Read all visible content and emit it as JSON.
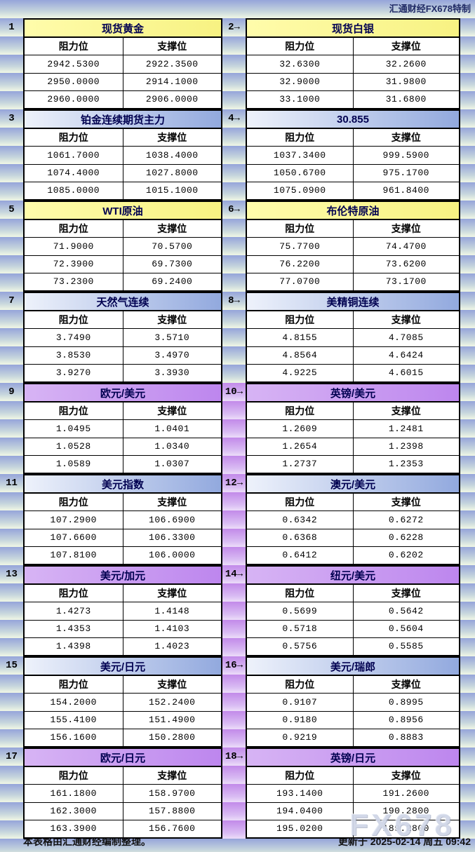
{
  "header": {
    "credit": "汇通财经FX678特制"
  },
  "labels": {
    "resistance": "阻力位",
    "support": "支撑位"
  },
  "footer": {
    "left": "本表格由汇通财经编制整理。",
    "right": "更新于 2025-02-14 周五 09:42"
  },
  "watermark": "FX678",
  "colors": {
    "stripe_blue_top": "#96a5da",
    "stripe_blue_bottom": "#ecf4e4",
    "stripe_purple_top": "#c28ae9",
    "stripe_purple_bottom": "#ead9f8",
    "title_yellow": "#f9f487",
    "title_blue": "#92a9de",
    "title_purple": "#bd86ee",
    "border": "#000000",
    "title_text": "#000050"
  },
  "tables": [
    {
      "label": "1",
      "title": "现货黄金",
      "theme": "yellow",
      "rows": [
        [
          "2942.5300",
          "2922.3500"
        ],
        [
          "2950.0000",
          "2914.1000"
        ],
        [
          "2960.0000",
          "2906.0000"
        ]
      ]
    },
    {
      "label": "2→",
      "title": "现货白银",
      "theme": "yellow",
      "rows": [
        [
          "32.6300",
          "32.2600"
        ],
        [
          "32.9000",
          "31.9800"
        ],
        [
          "33.1000",
          "31.6800"
        ]
      ]
    },
    {
      "label": "3",
      "title": "铂金连续期货主力",
      "theme": "blue",
      "rows": [
        [
          "1061.7000",
          "1038.4000"
        ],
        [
          "1074.4000",
          "1027.8000"
        ],
        [
          "1085.0000",
          "1015.1000"
        ]
      ]
    },
    {
      "label": "4→",
      "title": "30.855",
      "theme": "blue",
      "rows": [
        [
          "1037.3400",
          "999.5900"
        ],
        [
          "1050.6700",
          "975.1700"
        ],
        [
          "1075.0900",
          "961.8400"
        ]
      ]
    },
    {
      "label": "5",
      "title": "WTI原油",
      "theme": "yellow",
      "rows": [
        [
          "71.9000",
          "70.5700"
        ],
        [
          "72.3900",
          "69.7300"
        ],
        [
          "73.2300",
          "69.2400"
        ]
      ]
    },
    {
      "label": "6→",
      "title": "布伦特原油",
      "theme": "yellow",
      "rows": [
        [
          "75.7700",
          "74.4700"
        ],
        [
          "76.2200",
          "73.6200"
        ],
        [
          "77.0700",
          "73.1700"
        ]
      ]
    },
    {
      "label": "7",
      "title": "天然气连续",
      "theme": "blue",
      "rows": [
        [
          "3.7490",
          "3.5710"
        ],
        [
          "3.8530",
          "3.4970"
        ],
        [
          "3.9270",
          "3.3930"
        ]
      ]
    },
    {
      "label": "8→",
      "title": "美精铜连续",
      "theme": "blue",
      "rows": [
        [
          "4.8155",
          "4.7085"
        ],
        [
          "4.8564",
          "4.6424"
        ],
        [
          "4.9225",
          "4.6015"
        ]
      ]
    },
    {
      "label": "9",
      "title": "欧元/美元",
      "theme": "purple",
      "rows": [
        [
          "1.0495",
          "1.0401"
        ],
        [
          "1.0528",
          "1.0340"
        ],
        [
          "1.0589",
          "1.0307"
        ]
      ]
    },
    {
      "label": "10→",
      "title": "英镑/美元",
      "theme": "purple",
      "rows": [
        [
          "1.2609",
          "1.2481"
        ],
        [
          "1.2654",
          "1.2398"
        ],
        [
          "1.2737",
          "1.2353"
        ]
      ]
    },
    {
      "label": "11",
      "title": "美元指数",
      "theme": "blue",
      "rows": [
        [
          "107.2900",
          "106.6900"
        ],
        [
          "107.6600",
          "106.3300"
        ],
        [
          "107.8100",
          "106.0000"
        ]
      ]
    },
    {
      "label": "12→",
      "title": "澳元/美元",
      "theme": "blue",
      "rows": [
        [
          "0.6342",
          "0.6272"
        ],
        [
          "0.6368",
          "0.6228"
        ],
        [
          "0.6412",
          "0.6202"
        ]
      ]
    },
    {
      "label": "13",
      "title": "美元/加元",
      "theme": "purple",
      "rows": [
        [
          "1.4273",
          "1.4148"
        ],
        [
          "1.4353",
          "1.4103"
        ],
        [
          "1.4398",
          "1.4023"
        ]
      ]
    },
    {
      "label": "14→",
      "title": "纽元/美元",
      "theme": "purple",
      "rows": [
        [
          "0.5699",
          "0.5642"
        ],
        [
          "0.5718",
          "0.5604"
        ],
        [
          "0.5756",
          "0.5585"
        ]
      ]
    },
    {
      "label": "15",
      "title": "美元/日元",
      "theme": "blue",
      "rows": [
        [
          "154.2000",
          "152.2400"
        ],
        [
          "155.4100",
          "151.4900"
        ],
        [
          "156.1600",
          "150.2800"
        ]
      ]
    },
    {
      "label": "16→",
      "title": "美元/瑞郎",
      "theme": "blue",
      "rows": [
        [
          "0.9107",
          "0.8995"
        ],
        [
          "0.9180",
          "0.8956"
        ],
        [
          "0.9219",
          "0.8883"
        ]
      ]
    },
    {
      "label": "17",
      "title": "欧元/日元",
      "theme": "purple",
      "rows": [
        [
          "161.1800",
          "158.9700"
        ],
        [
          "162.3000",
          "157.8800"
        ],
        [
          "163.3900",
          "156.7600"
        ]
      ]
    },
    {
      "label": "18→",
      "title": "英镑/日元",
      "theme": "purple",
      "rows": [
        [
          "193.1400",
          "191.2600"
        ],
        [
          "194.0400",
          "190.2800"
        ],
        [
          "195.0200",
          "189.2800"
        ]
      ]
    }
  ]
}
